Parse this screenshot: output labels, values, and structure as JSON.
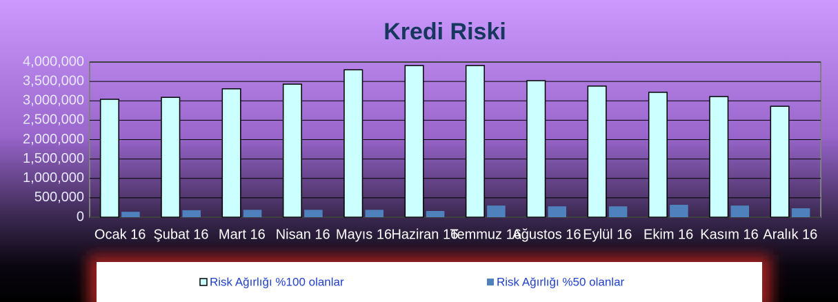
{
  "chart_data": {
    "type": "bar",
    "title": "Kredi Riski",
    "categories": [
      "Ocak 16",
      "Şubat 16",
      "Mart 16",
      "Nisan 16",
      "Mayıs 16",
      "Haziran 16",
      "Temmuz 16",
      "Ağustos 16",
      "Eylül 16",
      "Ekim 16",
      "Kasım 16",
      "Aralık 16"
    ],
    "series": [
      {
        "name": "Risk Ağırlığı %100 olanlar",
        "color": "#ccffff",
        "values": [
          3040000,
          3090000,
          3310000,
          3430000,
          3800000,
          3910000,
          3910000,
          3520000,
          3380000,
          3220000,
          3110000,
          2860000
        ]
      },
      {
        "name": "Risk Ağırlığı %50 olanlar",
        "color": "#4f81bd",
        "values": [
          140000,
          180000,
          190000,
          190000,
          190000,
          160000,
          300000,
          280000,
          280000,
          320000,
          300000,
          230000
        ]
      }
    ],
    "ylim": [
      0,
      4000000
    ],
    "yticks": [
      0,
      {
        "value": 500000,
        "label": "500,000"
      },
      {
        "value": 1000000,
        "label": "1,000,000"
      },
      {
        "value": 1500000,
        "label": "1,500,000"
      },
      {
        "value": 2000000,
        "label": "2,000,000"
      },
      {
        "value": 2500000,
        "label": "2,500,000"
      },
      {
        "value": 3000000,
        "label": "3,000,000"
      },
      {
        "value": 3500000,
        "label": "3,500,000"
      },
      {
        "value": 4000000,
        "label": "4,000,000"
      }
    ],
    "grid": true,
    "legend": "bottom"
  }
}
